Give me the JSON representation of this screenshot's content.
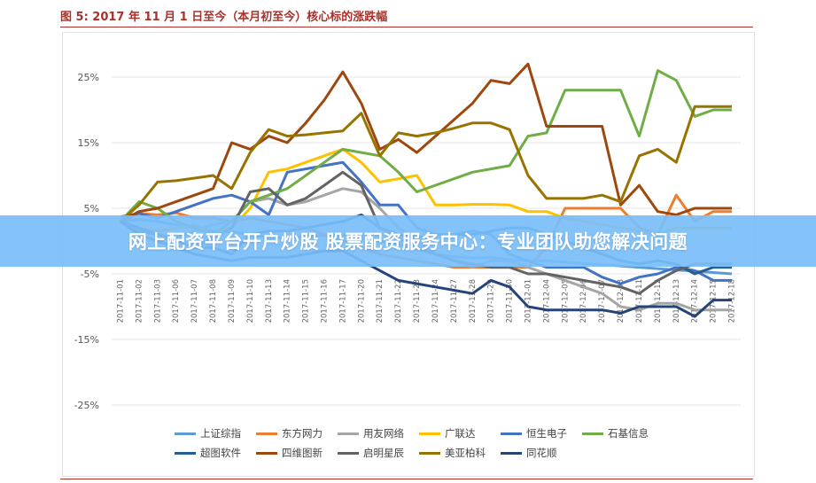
{
  "figure": {
    "title": "图 5: 2017 年 11 月 1 日至今（本月初至今）核心标的涨跌幅"
  },
  "banner": {
    "text": "网上配资平台开户炒股 股票配资服务中心：专业团队助您解决问题"
  },
  "chart_data": {
    "type": "line",
    "x": [
      "2017-11-01",
      "2017-11-02",
      "2017-11-03",
      "2017-11-06",
      "2017-11-07",
      "2017-11-08",
      "2017-11-09",
      "2017-11-10",
      "2017-11-13",
      "2017-11-14",
      "2017-11-15",
      "2017-11-16",
      "2017-11-17",
      "2017-11-20",
      "2017-11-21",
      "2017-11-22",
      "2017-11-23",
      "2017-11-24",
      "2017-11-27",
      "2017-11-28",
      "2017-11-29",
      "2017-11-30",
      "2017-12-01",
      "2017-12-04",
      "2017-12-05",
      "2017-12-06",
      "2017-12-07",
      "2017-12-08",
      "2017-12-11",
      "2017-12-12",
      "2017-12-13",
      "2017-12-14",
      "2017-12-15",
      "2017-12-18"
    ],
    "y_ticks": [
      "25%",
      "15%",
      "5%",
      "-5%",
      "-15%",
      "-25%"
    ],
    "ylim": [
      -25,
      25
    ],
    "series": [
      {
        "name": "上证综指",
        "color": "#5a9bd5",
        "values": [
          3.0,
          3.3,
          3.0,
          2.5,
          2.0,
          1.5,
          1.4,
          1.0,
          0.6,
          0.4,
          0.8,
          0.8,
          1.0,
          0.6,
          0.0,
          -0.5,
          -1.2,
          -2.0,
          -2.4,
          -2.6,
          -2.5,
          -2.8,
          -3.0,
          -3.0,
          -3.2,
          -3.4,
          -3.6,
          -3.8,
          -4.0,
          -4.2,
          -4.4,
          -4.6,
          -4.8,
          -5.0
        ]
      },
      {
        "name": "东方网力",
        "color": "#ed7d31",
        "values": [
          3.0,
          4.2,
          4.0,
          4.3,
          3.5,
          3.5,
          3.0,
          3.5,
          3.0,
          2.5,
          2.0,
          1.0,
          0.0,
          -1.0,
          -2.0,
          -2.5,
          -3.0,
          -3.5,
          -4.0,
          -4.0,
          -4.0,
          -4.0,
          -4.0,
          -1.0,
          5.0,
          5.0,
          5.0,
          5.0,
          2.0,
          1.0,
          7.0,
          3.0,
          4.5,
          4.5
        ]
      },
      {
        "name": "用友网络",
        "color": "#a5a5a5",
        "values": [
          3.0,
          1.5,
          1.0,
          0.5,
          1.5,
          2.5,
          3.0,
          6.0,
          6.5,
          5.5,
          6.0,
          7.0,
          8.0,
          7.5,
          5.0,
          2.0,
          0.0,
          -2.0,
          -3.0,
          -4.0,
          -3.0,
          -3.0,
          -4.0,
          -5.0,
          -6.0,
          -7.0,
          -8.0,
          -10.0,
          -10.5,
          -9.5,
          -9.5,
          -10.5,
          -10.5,
          -10.5
        ]
      },
      {
        "name": "广联达",
        "color": "#ffc000",
        "values": [
          3.0,
          2.0,
          1.5,
          2.0,
          2.5,
          1.0,
          2.0,
          5.0,
          10.5,
          11.0,
          12.0,
          13.0,
          14.0,
          12.0,
          9.0,
          9.5,
          10.0,
          5.5,
          5.5,
          5.6,
          5.6,
          5.5,
          4.5,
          4.5,
          3.5,
          3.0,
          2.5,
          2.0,
          1.5,
          1.0,
          2.0,
          2.0,
          2.0,
          2.0
        ]
      },
      {
        "name": "恒生电子",
        "color": "#4472c4",
        "values": [
          3.7,
          4.2,
          3.5,
          4.5,
          5.5,
          6.5,
          7.0,
          6.0,
          4.0,
          10.5,
          11.0,
          11.5,
          12.0,
          9.0,
          5.5,
          5.5,
          2.0,
          1.0,
          1.0,
          1.5,
          1.0,
          -2.0,
          -3.0,
          -4.0,
          -4.0,
          -4.0,
          -5.5,
          -6.5,
          -5.5,
          -5.0,
          -4.0,
          -4.5,
          -6.0,
          -6.0
        ]
      },
      {
        "name": "石基信息",
        "color": "#70ad47",
        "values": [
          3.0,
          6.0,
          5.0,
          3.0,
          2.0,
          1.0,
          3.0,
          6.0,
          7.0,
          8.0,
          10.0,
          12.0,
          14.0,
          13.5,
          13.0,
          10.5,
          7.5,
          8.5,
          9.5,
          10.5,
          11.0,
          11.5,
          16.0,
          16.5,
          23.0,
          23.0,
          23.0,
          23.0,
          16.0,
          26.0,
          24.5,
          19.0,
          20.0,
          20.0
        ]
      },
      {
        "name": "超图软件",
        "color": "#255e91",
        "values": [
          3.0,
          2.0,
          1.0,
          0.0,
          -1.0,
          -1.0,
          -2.0,
          1.0,
          1.5,
          1.5,
          2.0,
          2.5,
          3.0,
          4.0,
          2.0,
          1.0,
          0.5,
          1.0,
          1.0,
          1.0,
          1.5,
          2.0,
          2.0,
          1.0,
          0.0,
          -1.0,
          -2.0,
          -3.0,
          -3.5,
          -3.0,
          -3.5,
          -5.0,
          -4.0,
          -4.0
        ]
      },
      {
        "name": "四维图新",
        "color": "#9e480e",
        "values": [
          3.0,
          4.5,
          5.0,
          6.0,
          7.0,
          8.0,
          15.0,
          14.0,
          16.0,
          15.0,
          18.0,
          21.5,
          25.8,
          21.0,
          14.0,
          15.5,
          13.5,
          16.0,
          18.5,
          21.0,
          24.5,
          24.0,
          27.0,
          17.5,
          17.5,
          17.5,
          17.5,
          5.5,
          8.5,
          4.5,
          4.0,
          5.0,
          5.0,
          5.0
        ]
      },
      {
        "name": "启明星辰",
        "color": "#636363",
        "values": [
          3.0,
          1.5,
          1.0,
          0.0,
          -1.0,
          0.5,
          2.0,
          7.5,
          8.0,
          5.5,
          6.5,
          8.5,
          10.5,
          8.5,
          2.0,
          0.5,
          -1.0,
          -2.0,
          -3.0,
          -3.5,
          -4.0,
          -4.0,
          -5.0,
          -5.0,
          -5.5,
          -6.0,
          -6.5,
          -7.0,
          -8.0,
          -6.0,
          -4.5,
          -3.5,
          -3.5,
          -3.5
        ]
      },
      {
        "name": "美亚柏科",
        "color": "#997300",
        "values": [
          3.0,
          5.5,
          9.0,
          9.2,
          9.6,
          10.0,
          8.0,
          13.5,
          17.0,
          16.0,
          16.2,
          16.5,
          16.8,
          19.5,
          13.0,
          16.5,
          16.0,
          16.5,
          17.2,
          18.0,
          18.0,
          17.0,
          10.0,
          6.5,
          6.5,
          6.5,
          7.0,
          6.0,
          13.0,
          14.0,
          12.0,
          20.5,
          20.5,
          20.5
        ]
      },
      {
        "name": "同花顺",
        "color": "#264478",
        "values": [
          3.0,
          1.0,
          0.0,
          -1.0,
          -2.0,
          -2.5,
          -3.0,
          -2.5,
          -2.5,
          -2.5,
          -2.0,
          -1.5,
          -1.5,
          -3.0,
          -4.5,
          -6.0,
          -6.5,
          -7.0,
          -7.5,
          -8.0,
          -6.0,
          -7.0,
          -10.0,
          -10.5,
          -10.5,
          -10.5,
          -10.5,
          -11.0,
          -10.0,
          -10.0,
          -10.0,
          -11.5,
          -9.0,
          -9.0
        ]
      }
    ]
  }
}
